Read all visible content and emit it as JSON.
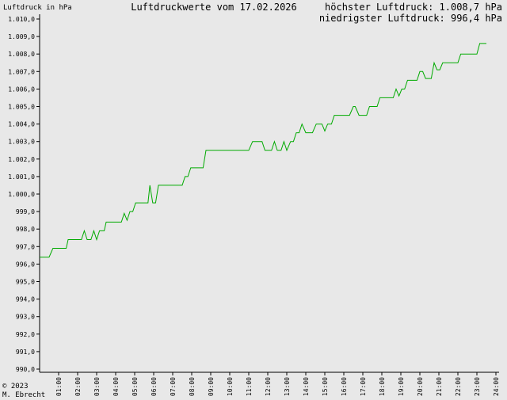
{
  "header": {
    "ylabel": "Luftdruck in hPa",
    "title": "Luftdruckwerte vom 17.02.2026",
    "max_text": "höchster Luftdruck: 1.008,7 hPa",
    "min_text": "niedrigster Luftdruck: 996,4 hPa"
  },
  "footer": {
    "copyright": "© 2023",
    "author": "M. Ebrecht"
  },
  "colors": {
    "line": "#00aa00",
    "axis": "#000000",
    "background": "#e8e8e8"
  },
  "chart_data": {
    "type": "line",
    "title": "Luftdruckwerte vom 17.02.2026",
    "ylabel": "Luftdruck in hPa",
    "xlabel": "",
    "xlim": [
      0,
      24
    ],
    "ylim": [
      990,
      1010
    ],
    "grid": false,
    "yticks": [
      990,
      991,
      992,
      993,
      994,
      995,
      996,
      997,
      998,
      999,
      1000,
      1001,
      1002,
      1003,
      1004,
      1005,
      1006,
      1007,
      1008,
      1009,
      1010
    ],
    "ytick_labels": [
      "990,0",
      "991,0",
      "992,0",
      "993,0",
      "994,0",
      "995,0",
      "996,0",
      "997,0",
      "998,0",
      "999,0",
      "1.000,0",
      "1.001,0",
      "1.002,0",
      "1.003,0",
      "1.004,0",
      "1.005,0",
      "1.006,0",
      "1.007,0",
      "1.008,0",
      "1.009,0",
      "1.010,0"
    ],
    "xticks": [
      1,
      2,
      3,
      4,
      5,
      6,
      7,
      8,
      9,
      10,
      11,
      12,
      13,
      14,
      15,
      16,
      17,
      18,
      19,
      20,
      21,
      22,
      23,
      24
    ],
    "xtick_labels": [
      "01:00",
      "02:00",
      "03:00",
      "04:00",
      "05:00",
      "06:00",
      "07:00",
      "08:00",
      "09:00",
      "10:00",
      "11:00",
      "12:00",
      "13:00",
      "14:00",
      "15:00",
      "16:00",
      "17:00",
      "18:00",
      "19:00",
      "20:00",
      "21:00",
      "22:00",
      "23:00",
      "24:00"
    ],
    "series": [
      {
        "points": [
          [
            0.0,
            996.4
          ],
          [
            0.5,
            996.4
          ],
          [
            0.7,
            996.9
          ],
          [
            1.4,
            996.9
          ],
          [
            1.5,
            997.4
          ],
          [
            2.2,
            997.4
          ],
          [
            2.35,
            997.9
          ],
          [
            2.5,
            997.4
          ],
          [
            2.7,
            997.4
          ],
          [
            2.85,
            997.9
          ],
          [
            3.0,
            997.4
          ],
          [
            3.15,
            997.9
          ],
          [
            3.4,
            997.9
          ],
          [
            3.5,
            998.4
          ],
          [
            4.3,
            998.4
          ],
          [
            4.45,
            998.9
          ],
          [
            4.6,
            998.5
          ],
          [
            4.75,
            999.0
          ],
          [
            4.9,
            999.0
          ],
          [
            5.05,
            999.5
          ],
          [
            5.7,
            999.5
          ],
          [
            5.8,
            1000.5
          ],
          [
            5.95,
            999.5
          ],
          [
            6.1,
            999.5
          ],
          [
            6.25,
            1000.5
          ],
          [
            7.5,
            1000.5
          ],
          [
            7.65,
            1001.0
          ],
          [
            7.8,
            1001.0
          ],
          [
            7.95,
            1001.5
          ],
          [
            8.6,
            1001.5
          ],
          [
            8.75,
            1002.5
          ],
          [
            11.0,
            1002.5
          ],
          [
            11.2,
            1003.0
          ],
          [
            11.7,
            1003.0
          ],
          [
            11.85,
            1002.5
          ],
          [
            12.2,
            1002.5
          ],
          [
            12.35,
            1003.0
          ],
          [
            12.5,
            1002.5
          ],
          [
            12.7,
            1002.5
          ],
          [
            12.85,
            1003.0
          ],
          [
            13.0,
            1002.5
          ],
          [
            13.2,
            1003.0
          ],
          [
            13.35,
            1003.0
          ],
          [
            13.5,
            1003.5
          ],
          [
            13.65,
            1003.5
          ],
          [
            13.8,
            1004.0
          ],
          [
            14.0,
            1003.5
          ],
          [
            14.35,
            1003.5
          ],
          [
            14.55,
            1004.0
          ],
          [
            14.85,
            1004.0
          ],
          [
            15.0,
            1003.6
          ],
          [
            15.15,
            1004.0
          ],
          [
            15.35,
            1004.0
          ],
          [
            15.5,
            1004.5
          ],
          [
            16.3,
            1004.5
          ],
          [
            16.5,
            1005.0
          ],
          [
            16.6,
            1005.0
          ],
          [
            16.8,
            1004.5
          ],
          [
            17.2,
            1004.5
          ],
          [
            17.35,
            1005.0
          ],
          [
            17.75,
            1005.0
          ],
          [
            17.9,
            1005.5
          ],
          [
            18.6,
            1005.5
          ],
          [
            18.75,
            1006.0
          ],
          [
            18.9,
            1005.6
          ],
          [
            19.05,
            1006.0
          ],
          [
            19.2,
            1006.0
          ],
          [
            19.35,
            1006.5
          ],
          [
            19.85,
            1006.5
          ],
          [
            20.0,
            1007.0
          ],
          [
            20.15,
            1007.0
          ],
          [
            20.3,
            1006.6
          ],
          [
            20.6,
            1006.6
          ],
          [
            20.75,
            1007.5
          ],
          [
            20.9,
            1007.1
          ],
          [
            21.05,
            1007.1
          ],
          [
            21.2,
            1007.5
          ],
          [
            22.0,
            1007.5
          ],
          [
            22.15,
            1008.0
          ],
          [
            23.0,
            1008.0
          ],
          [
            23.15,
            1008.6
          ],
          [
            23.5,
            1008.6
          ]
        ]
      }
    ]
  }
}
